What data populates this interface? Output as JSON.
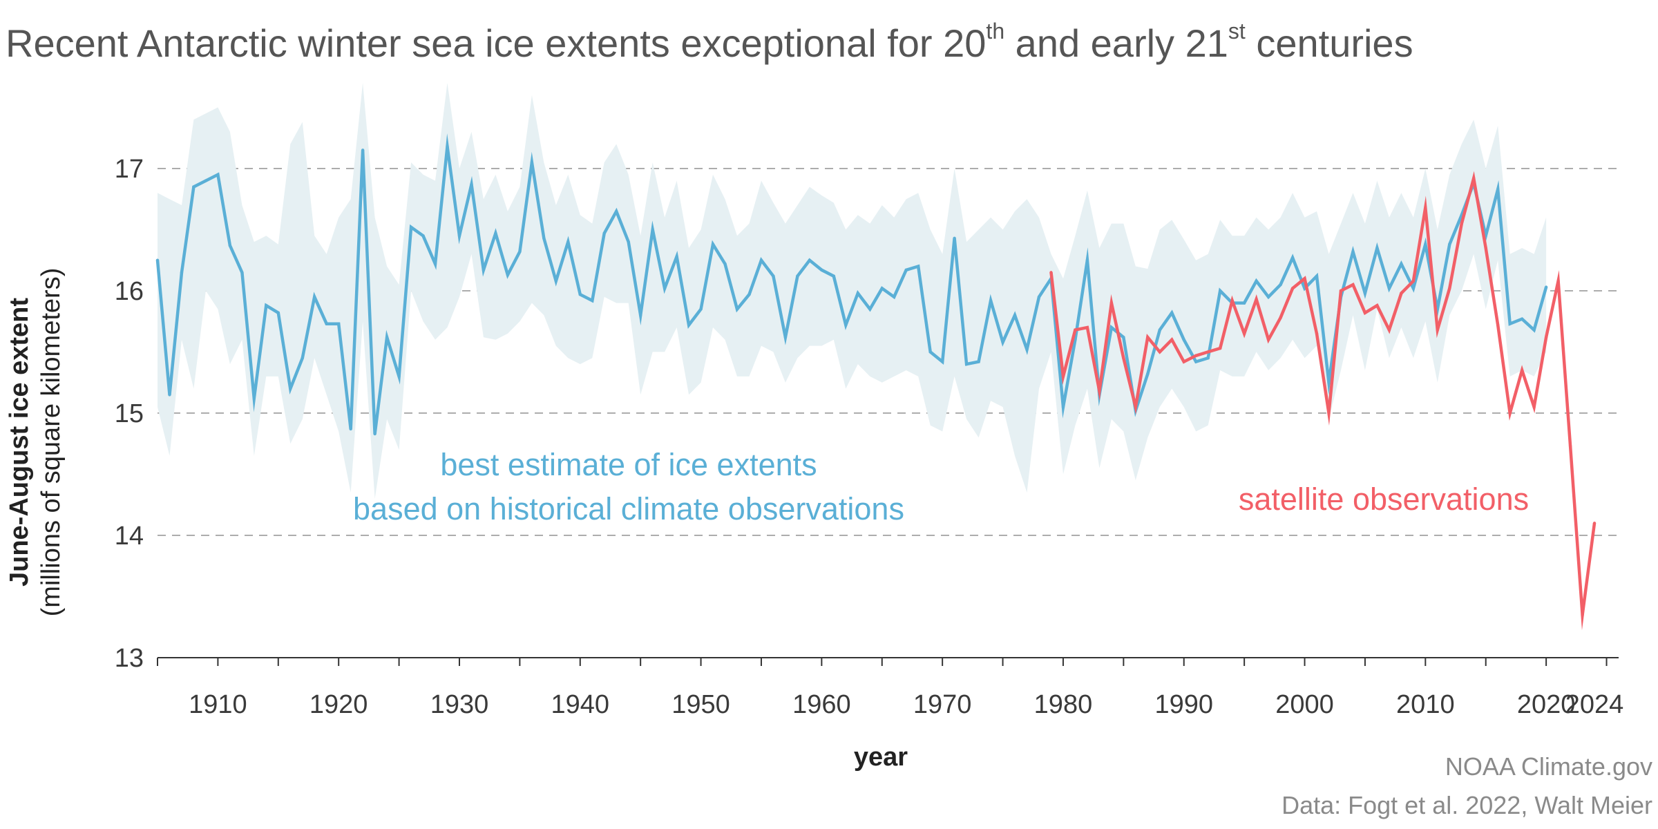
{
  "title": {
    "part1": "Recent Antarctic winter sea ice extents exceptional for 20",
    "sup1": "th",
    "part2": " and early 21",
    "sup2": "st",
    "part3": " centuries"
  },
  "credits": {
    "source": "NOAA Climate.gov",
    "data": "Data: Fogt et  al. 2022, Walt Meier"
  },
  "colors": {
    "reconstruction": "#5aafd6",
    "band": "#e6f0f3",
    "satellite": "#f25f67",
    "grid": "#9a9a9a",
    "axis": "#333333"
  },
  "chart_data": {
    "type": "line",
    "title": "Recent Antarctic winter sea ice extents exceptional for 20th and early 21st centuries",
    "xlabel": "year",
    "ylabel": "June-August ice extent",
    "ylabel_sub": "(millions of square kilometers)",
    "xlim": [
      1905,
      2026
    ],
    "ylim": [
      13,
      17.7
    ],
    "xticks": [
      1910,
      1920,
      1930,
      1940,
      1950,
      1960,
      1970,
      1980,
      1990,
      2000,
      2010,
      2020,
      2024
    ],
    "yticks": [
      13,
      14,
      15,
      16,
      17
    ],
    "grid": "dashed horizontal lines at 14, 15, 16 and 17",
    "annotations": [
      {
        "series": "reconstruction",
        "lines": [
          "best estimate of ice extents",
          "based on historical climate observations"
        ]
      },
      {
        "series": "satellite",
        "lines": [
          "satellite observations"
        ]
      }
    ],
    "series": [
      {
        "key": "reconstruction",
        "x": [
          1905,
          1906,
          1907,
          1908,
          1909,
          1910,
          1911,
          1912,
          1913,
          1914,
          1915,
          1916,
          1917,
          1918,
          1919,
          1920,
          1921,
          1922,
          1923,
          1924,
          1925,
          1926,
          1927,
          1928,
          1929,
          1930,
          1931,
          1932,
          1933,
          1934,
          1935,
          1936,
          1937,
          1938,
          1939,
          1940,
          1941,
          1942,
          1943,
          1944,
          1945,
          1946,
          1947,
          1948,
          1949,
          1950,
          1951,
          1952,
          1953,
          1954,
          1955,
          1956,
          1957,
          1958,
          1959,
          1960,
          1961,
          1962,
          1963,
          1964,
          1965,
          1966,
          1967,
          1968,
          1969,
          1970,
          1971,
          1972,
          1973,
          1974,
          1975,
          1976,
          1977,
          1978,
          1979,
          1980,
          1981,
          1982,
          1983,
          1984,
          1985,
          1986,
          1987,
          1988,
          1989,
          1990,
          1991,
          1992,
          1993,
          1994,
          1995,
          1996,
          1997,
          1998,
          1999,
          2000,
          2001,
          2002,
          2003,
          2004,
          2005,
          2006,
          2007,
          2008,
          2009,
          2010,
          2011,
          2012,
          2013,
          2014,
          2015,
          2016,
          2017,
          2018,
          2019,
          2020
        ],
        "values": [
          16.25,
          15.15,
          16.15,
          16.85,
          16.9,
          16.95,
          16.37,
          16.15,
          15.12,
          15.88,
          15.82,
          15.2,
          15.45,
          15.95,
          15.73,
          15.73,
          14.87,
          17.15,
          14.83,
          15.62,
          15.3,
          16.52,
          16.45,
          16.22,
          17.18,
          16.45,
          16.87,
          16.17,
          16.47,
          16.13,
          16.32,
          17.05,
          16.43,
          16.08,
          16.4,
          15.97,
          15.92,
          16.47,
          16.65,
          16.4,
          15.8,
          16.5,
          16.02,
          16.28,
          15.72,
          15.85,
          16.38,
          16.22,
          15.85,
          15.97,
          16.25,
          16.12,
          15.62,
          16.12,
          16.25,
          16.17,
          16.12,
          15.72,
          15.98,
          15.85,
          16.02,
          15.95,
          16.17,
          16.2,
          15.5,
          15.42,
          16.43,
          15.4,
          15.42,
          15.92,
          15.58,
          15.8,
          15.52,
          15.95,
          16.1,
          15.05,
          15.6,
          16.25,
          15.15,
          15.7,
          15.62,
          15.02,
          15.32,
          15.68,
          15.82,
          15.6,
          15.42,
          15.45,
          16.0,
          15.9,
          15.9,
          16.08,
          15.95,
          16.05,
          16.27,
          16.02,
          16.12,
          15.25,
          15.95,
          16.32,
          15.98,
          16.35,
          16.02,
          16.22,
          16.02,
          16.38,
          15.85,
          16.38,
          16.62,
          16.88,
          16.45,
          16.83,
          15.73,
          15.77,
          15.68,
          16.03
        ]
      },
      {
        "key": "uncertainty",
        "x": [
          1905,
          1906,
          1907,
          1908,
          1909,
          1910,
          1911,
          1912,
          1913,
          1914,
          1915,
          1916,
          1917,
          1918,
          1919,
          1920,
          1921,
          1922,
          1923,
          1924,
          1925,
          1926,
          1927,
          1928,
          1929,
          1930,
          1931,
          1932,
          1933,
          1934,
          1935,
          1936,
          1937,
          1938,
          1939,
          1940,
          1941,
          1942,
          1943,
          1944,
          1945,
          1946,
          1947,
          1948,
          1949,
          1950,
          1951,
          1952,
          1953,
          1954,
          1955,
          1956,
          1957,
          1958,
          1959,
          1960,
          1961,
          1962,
          1963,
          1964,
          1965,
          1966,
          1967,
          1968,
          1969,
          1970,
          1971,
          1972,
          1973,
          1974,
          1975,
          1976,
          1977,
          1978,
          1979,
          1980,
          1981,
          1982,
          1983,
          1984,
          1985,
          1986,
          1987,
          1988,
          1989,
          1990,
          1991,
          1992,
          1993,
          1994,
          1995,
          1996,
          1997,
          1998,
          1999,
          2000,
          2001,
          2002,
          2003,
          2004,
          2005,
          2006,
          2007,
          2008,
          2009,
          2010,
          2011,
          2012,
          2013,
          2014,
          2015,
          2016,
          2017,
          2018,
          2019,
          2020
        ],
        "upper": [
          16.8,
          16.75,
          16.7,
          17.4,
          17.45,
          17.5,
          17.3,
          16.7,
          16.4,
          16.45,
          16.38,
          17.2,
          17.38,
          16.45,
          16.3,
          16.6,
          16.75,
          17.7,
          16.6,
          16.2,
          16.05,
          17.05,
          16.95,
          16.9,
          17.7,
          17.0,
          17.3,
          16.75,
          16.95,
          16.65,
          16.85,
          17.6,
          17.05,
          16.7,
          16.95,
          16.62,
          16.55,
          17.05,
          17.2,
          16.95,
          16.45,
          17.05,
          16.6,
          16.9,
          16.35,
          16.5,
          16.95,
          16.75,
          16.45,
          16.55,
          16.9,
          16.72,
          16.55,
          16.7,
          16.85,
          16.78,
          16.72,
          16.5,
          16.62,
          16.55,
          16.7,
          16.6,
          16.75,
          16.8,
          16.5,
          16.3,
          17.0,
          16.4,
          16.5,
          16.6,
          16.5,
          16.65,
          16.75,
          16.6,
          16.3,
          16.1,
          16.45,
          16.82,
          16.35,
          16.55,
          16.55,
          16.2,
          16.18,
          16.5,
          16.58,
          16.42,
          16.25,
          16.3,
          16.58,
          16.45,
          16.45,
          16.6,
          16.5,
          16.6,
          16.8,
          16.6,
          16.65,
          16.3,
          16.55,
          16.8,
          16.55,
          16.9,
          16.6,
          16.8,
          16.6,
          17.0,
          16.5,
          16.95,
          17.2,
          17.4,
          17.0,
          17.35,
          16.3,
          16.35,
          16.3,
          16.6
        ],
        "lower": [
          15.05,
          14.65,
          15.6,
          15.2,
          16.0,
          15.85,
          15.4,
          15.6,
          14.65,
          15.3,
          15.3,
          14.75,
          14.95,
          15.45,
          15.15,
          14.85,
          14.35,
          15.75,
          14.3,
          14.95,
          14.7,
          16.0,
          15.75,
          15.6,
          15.7,
          15.95,
          16.3,
          15.62,
          15.6,
          15.65,
          15.75,
          15.9,
          15.8,
          15.55,
          15.45,
          15.4,
          15.45,
          15.95,
          15.9,
          15.9,
          15.15,
          15.5,
          15.5,
          15.7,
          15.15,
          15.25,
          15.7,
          15.6,
          15.3,
          15.3,
          15.55,
          15.5,
          15.25,
          15.45,
          15.55,
          15.55,
          15.6,
          15.2,
          15.4,
          15.3,
          15.25,
          15.3,
          15.35,
          15.3,
          14.9,
          14.85,
          15.3,
          14.95,
          14.8,
          15.1,
          15.05,
          14.65,
          14.35,
          15.2,
          15.5,
          14.5,
          14.9,
          15.2,
          14.55,
          14.95,
          14.85,
          14.45,
          14.8,
          15.05,
          15.2,
          15.05,
          14.85,
          14.9,
          15.35,
          15.3,
          15.3,
          15.5,
          15.35,
          15.45,
          15.6,
          15.45,
          15.55,
          14.95,
          15.35,
          15.8,
          15.35,
          15.85,
          15.45,
          15.7,
          15.45,
          15.75,
          15.25,
          15.8,
          16.0,
          16.3,
          15.85,
          16.25,
          15.3,
          15.35,
          15.3,
          15.5
        ]
      },
      {
        "key": "satellite",
        "x": [
          1979,
          1980,
          1981,
          1982,
          1983,
          1984,
          1985,
          1986,
          1987,
          1988,
          1989,
          1990,
          1991,
          1992,
          1993,
          1994,
          1995,
          1996,
          1997,
          1998,
          1999,
          2000,
          2001,
          2002,
          2003,
          2004,
          2005,
          2006,
          2007,
          2008,
          2009,
          2010,
          2011,
          2012,
          2013,
          2014,
          2015,
          2016,
          2017,
          2018,
          2019,
          2020,
          2021,
          2022,
          2023,
          2024
        ],
        "values": [
          16.15,
          15.3,
          15.68,
          15.7,
          15.18,
          15.9,
          15.45,
          15.05,
          15.62,
          15.5,
          15.6,
          15.42,
          15.47,
          15.5,
          15.53,
          15.92,
          15.65,
          15.93,
          15.6,
          15.78,
          16.02,
          16.1,
          15.65,
          15.0,
          16.0,
          16.05,
          15.82,
          15.88,
          15.68,
          15.98,
          16.08,
          16.68,
          15.68,
          16.02,
          16.55,
          16.92,
          16.35,
          15.72,
          15.0,
          15.35,
          15.05,
          15.62,
          16.08,
          14.73,
          13.35,
          14.1
        ]
      }
    ]
  }
}
